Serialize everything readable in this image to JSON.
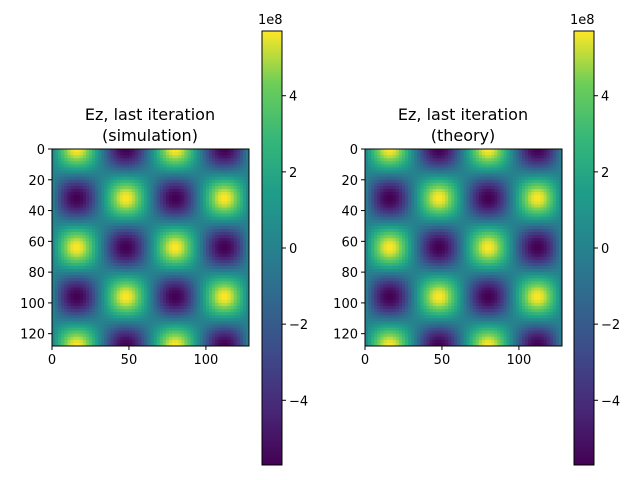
{
  "chart_data": [
    {
      "type": "heatmap",
      "title_line1": "Ez, last iteration",
      "title_line2": "(simulation)",
      "xlabel": "",
      "ylabel": "",
      "xlim": [
        0,
        128
      ],
      "ylim": [
        128,
        0
      ],
      "x_ticks": [
        "0",
        "50",
        "100"
      ],
      "y_ticks": [
        "0",
        "20",
        "40",
        "60",
        "80",
        "100",
        "120"
      ],
      "colormap": "viridis",
      "field": {
        "amplitude": 570000000.0,
        "x_period": 64,
        "y_period": 64,
        "x_phase_deg": 0,
        "y_phase_deg": 90
      }
    },
    {
      "type": "heatmap",
      "title_line1": "Ez, last iteration",
      "title_line2": "(theory)",
      "xlabel": "",
      "ylabel": "",
      "xlim": [
        0,
        128
      ],
      "ylim": [
        128,
        0
      ],
      "x_ticks": [
        "0",
        "50",
        "100"
      ],
      "y_ticks": [
        "0",
        "20",
        "40",
        "60",
        "80",
        "100",
        "120"
      ],
      "colormap": "viridis",
      "field": {
        "amplitude": 570000000.0,
        "x_period": 64,
        "y_period": 64,
        "x_phase_deg": 0,
        "y_phase_deg": 90
      }
    }
  ],
  "colorbars": [
    {
      "offset_label": "1e8",
      "vmin": -5.7,
      "vmax": 5.7,
      "ticks": [
        -4,
        -2,
        0,
        2,
        4
      ],
      "tick_labels": [
        "−4",
        "−2",
        "0",
        "2",
        "4"
      ]
    },
    {
      "offset_label": "1e8",
      "vmin": -5.7,
      "vmax": 5.7,
      "ticks": [
        -4,
        -2,
        0,
        2,
        4
      ],
      "tick_labels": [
        "−4",
        "−2",
        "0",
        "2",
        "4"
      ]
    }
  ]
}
